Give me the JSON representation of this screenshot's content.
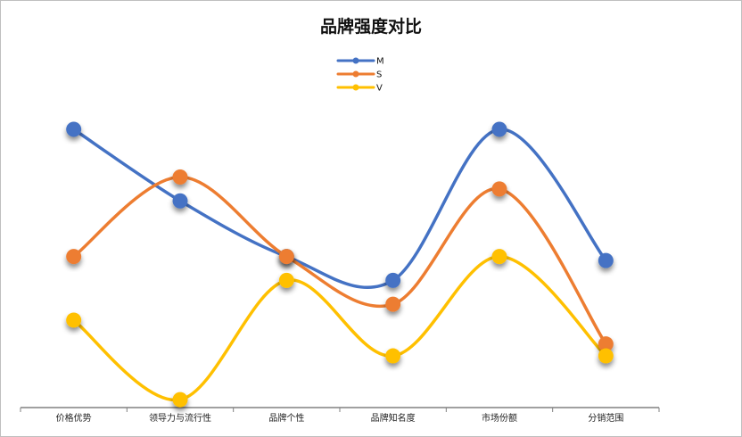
{
  "chart_data": {
    "type": "line",
    "title": "品牌强度对比",
    "categories": [
      "价格优势",
      "领导力与流行性",
      "品牌个性",
      "品牌知名度",
      "市场份额",
      "分销范围"
    ],
    "series": [
      {
        "name": "M",
        "color": "#4472C4",
        "values": [
          80,
          62,
          48,
          42,
          80,
          47
        ]
      },
      {
        "name": "S",
        "color": "#ED7D31",
        "values": [
          48,
          68,
          48,
          36,
          65,
          26
        ]
      },
      {
        "name": "V",
        "color": "#FFC000",
        "values": [
          32,
          12,
          42,
          23,
          48,
          23
        ]
      }
    ],
    "ylim": [
      10,
      80
    ],
    "grid": false,
    "legend": "top-center",
    "smooth": true
  }
}
